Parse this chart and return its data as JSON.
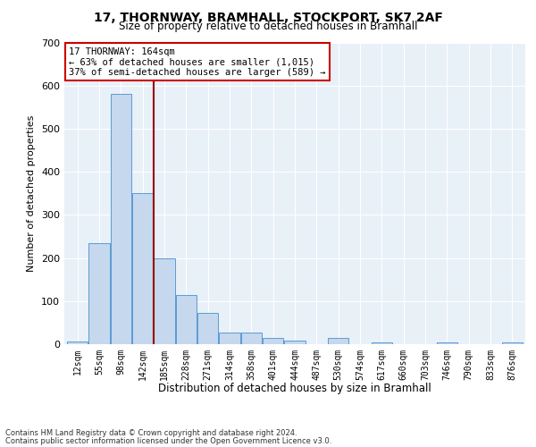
{
  "title": "17, THORNWAY, BRAMHALL, STOCKPORT, SK7 2AF",
  "subtitle": "Size of property relative to detached houses in Bramhall",
  "xlabel": "Distribution of detached houses by size in Bramhall",
  "ylabel": "Number of detached properties",
  "bar_color": "#c5d8ed",
  "bar_edge_color": "#5b9bd5",
  "bg_color": "#e8f0f8",
  "grid_color": "#ffffff",
  "annotation_box_color": "#cc0000",
  "vline_color": "#990000",
  "categories": [
    "12sqm",
    "55sqm",
    "98sqm",
    "142sqm",
    "185sqm",
    "228sqm",
    "271sqm",
    "314sqm",
    "358sqm",
    "401sqm",
    "444sqm",
    "487sqm",
    "530sqm",
    "574sqm",
    "617sqm",
    "660sqm",
    "703sqm",
    "746sqm",
    "790sqm",
    "833sqm",
    "876sqm"
  ],
  "values": [
    7,
    235,
    580,
    350,
    200,
    115,
    73,
    27,
    27,
    14,
    8,
    0,
    14,
    0,
    5,
    0,
    0,
    5,
    0,
    0,
    5
  ],
  "annotation_text": "17 THORNWAY: 164sqm\n← 63% of detached houses are smaller (1,015)\n37% of semi-detached houses are larger (589) →",
  "vline_pos": 3.5,
  "ylim": [
    0,
    700
  ],
  "yticks": [
    0,
    100,
    200,
    300,
    400,
    500,
    600,
    700
  ],
  "footnote1": "Contains HM Land Registry data © Crown copyright and database right 2024.",
  "footnote2": "Contains public sector information licensed under the Open Government Licence v3.0.",
  "fig_width": 6.0,
  "fig_height": 5.0,
  "fig_dpi": 100
}
